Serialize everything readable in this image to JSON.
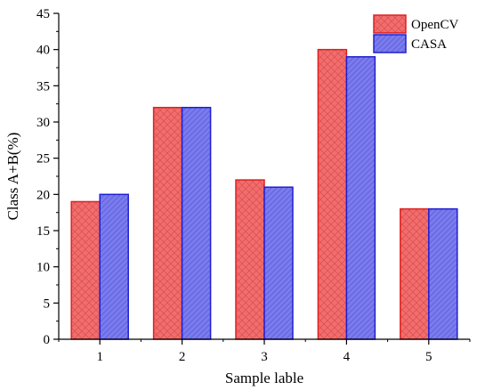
{
  "chart_data": {
    "type": "bar",
    "xlabel": "Sample lable",
    "ylabel": "Class A+B(%)",
    "categories": [
      "1",
      "2",
      "3",
      "4",
      "5"
    ],
    "ylim": [
      0,
      45
    ],
    "yticks": [
      0,
      5,
      10,
      15,
      20,
      25,
      30,
      35,
      40,
      45
    ],
    "grid": false,
    "legend_position": "top-right",
    "series": [
      {
        "name": "OpenCV",
        "values": [
          19,
          32,
          22,
          40,
          18
        ],
        "fill": "#f26d6d",
        "stroke": "#e02020",
        "hatch": "crosshatch"
      },
      {
        "name": "CASA",
        "values": [
          20,
          32,
          21,
          39,
          18
        ],
        "fill": "#7b7bf0",
        "stroke": "#1f1fd0",
        "hatch": "diagonal"
      }
    ]
  }
}
